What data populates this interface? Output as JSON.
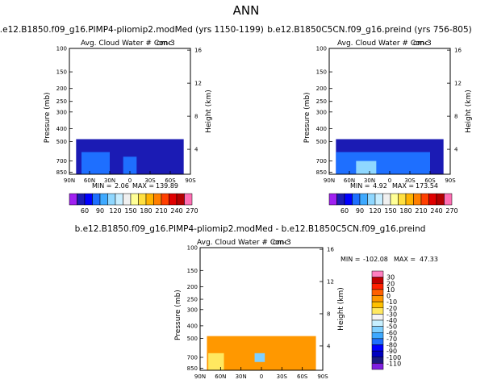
{
  "figure": {
    "title": "ANN"
  },
  "panels": [
    {
      "title": "b.e12.B1850.f09_g16.PIMP4-pliomip2.modMed (yrs 1150-1199)",
      "subtitle": "Avg. Cloud Water # Conc",
      "units": "cm-3",
      "min_label": "MIN =",
      "min_value": "2.06",
      "max_label": "MAX =",
      "max_value": "139.89"
    },
    {
      "title": "b.e12.B1850C5CN.f09_g16.preind (yrs 756-805)",
      "subtitle": "Avg. Cloud Water # Conc",
      "units": "cm-3",
      "min_label": "MIN =",
      "min_value": "4.92",
      "max_label": "MAX =",
      "max_value": "173.54"
    },
    {
      "title": "b.e12.B1850.f09_g16.PIMP4-pliomip2.modMed - b.e12.B1850C5CN.f09_g16.preind",
      "subtitle": "Avg. Cloud Water # Conc",
      "units": "cm-3",
      "min_label": "MIN =",
      "min_value": "-102.08",
      "max_label": "MAX =",
      "max_value": "47.33"
    }
  ],
  "axes": {
    "ylabel_left": "Pressure (mb)",
    "ylabel_right": "Height (km)",
    "pressure_ticks": [
      "100",
      "150",
      "200",
      "250",
      "300",
      "400",
      "500",
      "700",
      "850"
    ],
    "height_ticks": [
      "16",
      "12",
      "8",
      "4"
    ],
    "lat_ticks": [
      "90N",
      "60N",
      "30N",
      "0",
      "30S",
      "60S",
      "90S"
    ]
  },
  "colorbar_top": {
    "labels": [
      "60",
      "90",
      "120",
      "150",
      "180",
      "210",
      "240",
      "270"
    ],
    "colors": [
      "#a020f0",
      "#1b1bb4",
      "#0000ff",
      "#1e6fff",
      "#3ea9ff",
      "#8fd7ff",
      "#c8eeff",
      "#f0f0f0",
      "#ffff96",
      "#ffe040",
      "#ffb300",
      "#ff7f00",
      "#ff3f00",
      "#e00000",
      "#b40000",
      "#ff6fb4"
    ]
  },
  "colorbar_diff": {
    "labels": [
      "30",
      "20",
      "10",
      "0",
      "-10",
      "-20",
      "-30",
      "-40",
      "-50",
      "-60",
      "-70",
      "-80",
      "-90",
      "-100",
      "-110"
    ],
    "colors": [
      "#ff80c0",
      "#c00000",
      "#ff2000",
      "#ff6000",
      "#ff9800",
      "#ffc000",
      "#ffe860",
      "#f5f5f5",
      "#c8f0ff",
      "#80d0ff",
      "#3ea9ff",
      "#1e6fff",
      "#0000ff",
      "#0000c0",
      "#1b1b80",
      "#8020e0"
    ]
  },
  "chart_data": [
    {
      "type": "heatmap",
      "title": "b.e12.B1850.f09_g16.PIMP4-pliomip2.modMed (yrs 1150-1199)",
      "variable": "Avg. Cloud Water # Conc",
      "units": "cm-3",
      "xlabel": "",
      "ylabel": "Pressure (mb)",
      "ylabel_right": "Height (km)",
      "x_ticks": [
        "90N",
        "60N",
        "30N",
        "0",
        "30S",
        "60S",
        "90S"
      ],
      "y_ticks": [
        100,
        150,
        200,
        250,
        300,
        400,
        500,
        700,
        850
      ],
      "y_scale": "log",
      "min": 2.06,
      "max": 139.89,
      "regions": [
        {
          "lat": [
            80,
            -80
          ],
          "pressure": [
            480,
            880
          ],
          "value": 70
        },
        {
          "lat": [
            72,
            30
          ],
          "pressure": [
            600,
            880
          ],
          "value": 90
        },
        {
          "lat": [
            10,
            -10
          ],
          "pressure": [
            650,
            880
          ],
          "value": 90
        }
      ]
    },
    {
      "type": "heatmap",
      "title": "b.e12.B1850C5CN.f09_g16.preind (yrs 756-805)",
      "variable": "Avg. Cloud Water # Conc",
      "units": "cm-3",
      "xlabel": "",
      "ylabel": "Pressure (mb)",
      "ylabel_right": "Height (km)",
      "x_ticks": [
        "90N",
        "60N",
        "30N",
        "0",
        "30S",
        "60S",
        "90S"
      ],
      "y_ticks": [
        100,
        150,
        200,
        250,
        300,
        400,
        500,
        700,
        850
      ],
      "y_scale": "log",
      "min": 4.92,
      "max": 173.54,
      "regions": [
        {
          "lat": [
            80,
            -80
          ],
          "pressure": [
            480,
            880
          ],
          "value": 70
        },
        {
          "lat": [
            80,
            -60
          ],
          "pressure": [
            600,
            880
          ],
          "value": 90
        },
        {
          "lat": [
            50,
            20
          ],
          "pressure": [
            700,
            880
          ],
          "value": 120
        }
      ]
    },
    {
      "type": "heatmap",
      "title": "b.e12.B1850.f09_g16.PIMP4-pliomip2.modMed - b.e12.B1850C5CN.f09_g16.preind",
      "variable": "Avg. Cloud Water # Conc",
      "units": "cm-3",
      "xlabel": "",
      "ylabel": "Pressure (mb)",
      "ylabel_right": "Height (km)",
      "x_ticks": [
        "90N",
        "60N",
        "30N",
        "0",
        "30S",
        "60S",
        "90S"
      ],
      "y_ticks": [
        100,
        150,
        200,
        250,
        300,
        400,
        500,
        700,
        850
      ],
      "y_scale": "log",
      "min": -102.08,
      "max": 47.33,
      "regions": [
        {
          "lat": [
            80,
            -80
          ],
          "pressure": [
            480,
            880
          ],
          "value": -10
        },
        {
          "lat": [
            78,
            55
          ],
          "pressure": [
            650,
            880
          ],
          "value": -30
        },
        {
          "lat": [
            10,
            -5
          ],
          "pressure": [
            650,
            760
          ],
          "value": -60
        }
      ]
    }
  ]
}
